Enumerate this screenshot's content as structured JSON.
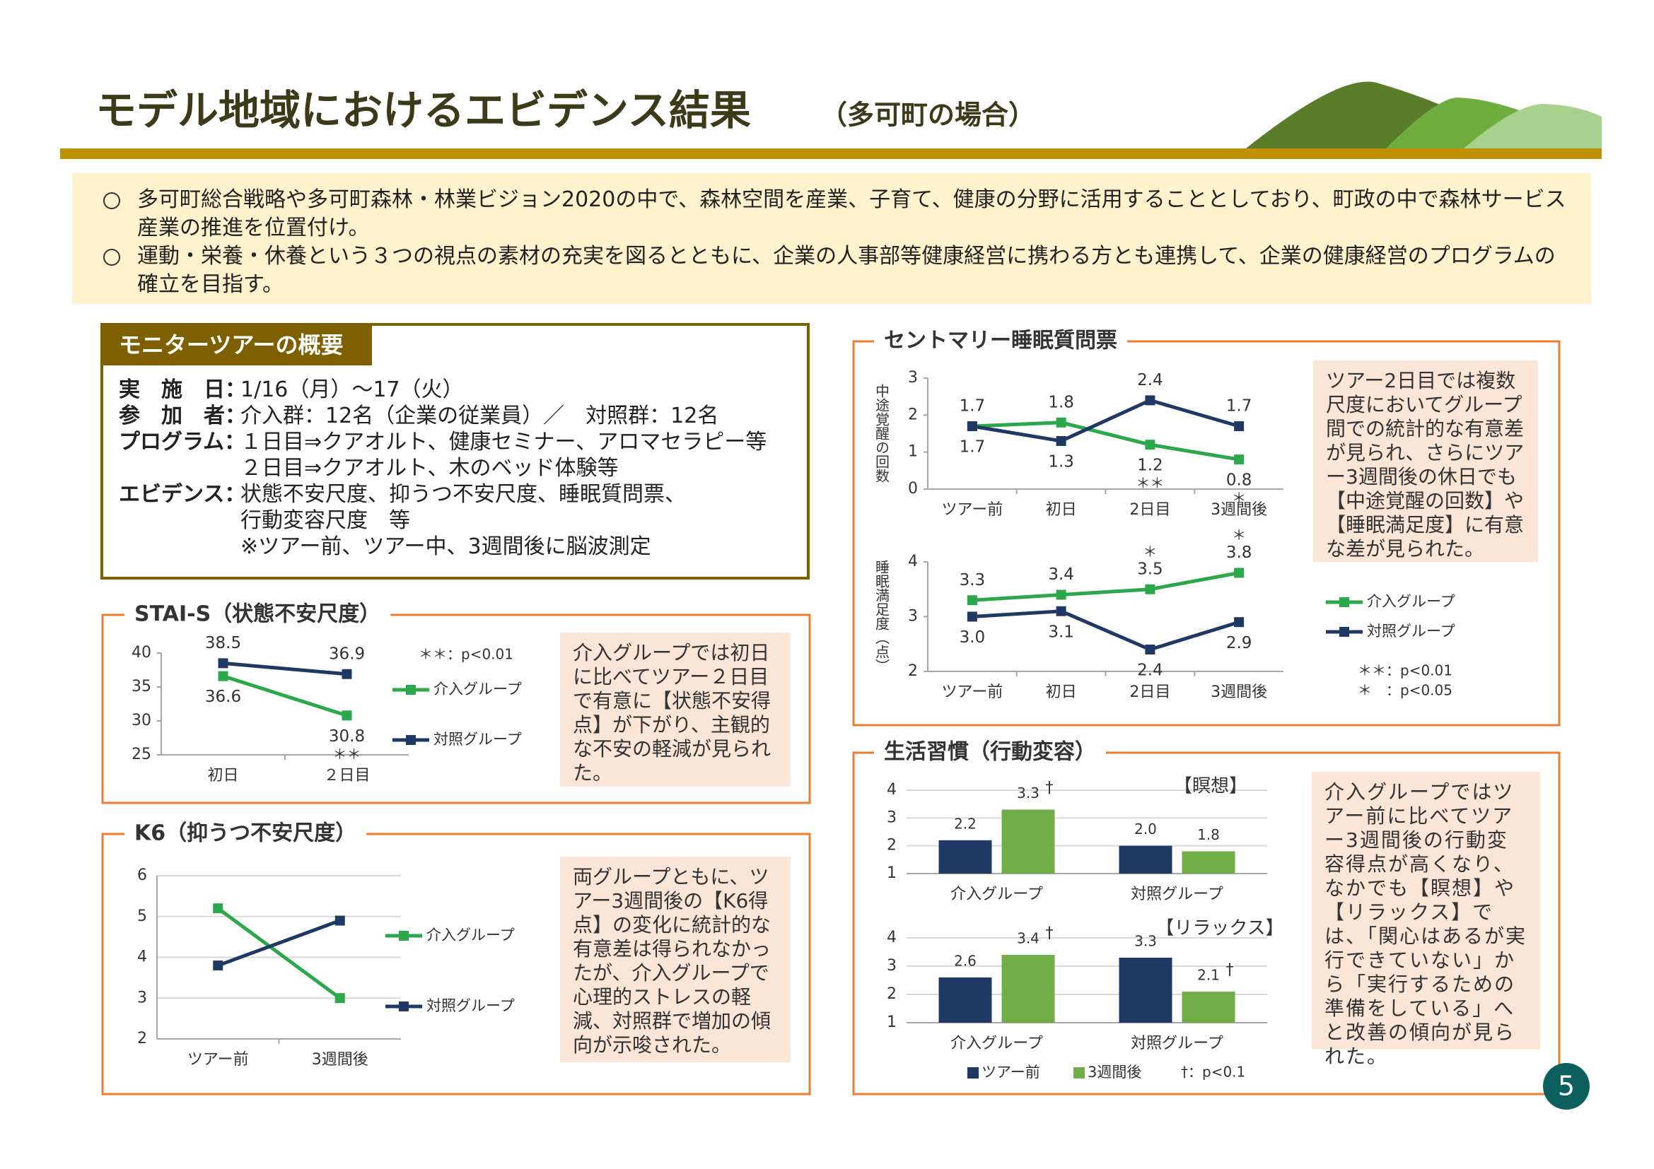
{
  "header": {
    "title": "モデル地域におけるエビデンス結果",
    "subtitle": "（多可町の場合）",
    "page": "5"
  },
  "summary": [
    "多可町総合戦略や多可町森林・林業ビジョン2020の中で、森林空間を産業、子育て、健康の分野に活用することとしており、町政の中で森林サービス産業の推進を位置付け。",
    "運動・栄養・休養という３つの視点の素材の充実を図るとともに、企業の人事部等健康経営に携わる方とも連携して、企業の健康経営のプログラムの確立を目指す。"
  ],
  "overview": {
    "title": "モニターツアーの概要",
    "rows": [
      {
        "label": "実　施　日：",
        "lines": [
          "1/16（月）～17（火）"
        ]
      },
      {
        "label": "参　加　者：",
        "lines": [
          "介入群：12名（企業の従業員）／　対照群：12名"
        ]
      },
      {
        "label": "プログラム：",
        "lines": [
          "１日目⇒クアオルト、健康セミナー、アロマセラピー等",
          "２日目⇒クアオルト、木のベッド体験等"
        ]
      },
      {
        "label": "エビデンス：",
        "lines": [
          "状態不安尺度、抑うつ不安尺度、睡眠質問票、",
          "行動変容尺度　等",
          "※ツアー前、ツアー中、3週間後に脳波測定"
        ]
      }
    ]
  },
  "panels": [
    {
      "title": "STAI-S（状態不安尺度）",
      "note": "介入グループでは初日に比べてツアー２日目で有意に【状態不安得点】が下がり、主観的な不安の軽減が見られた。"
    },
    {
      "title": "K6（抑うつ不安尺度）",
      "note": "両グループともに、ツアー3週間後の【K6得点】の変化に統計的な有意差は得られなかったが、介入グループで心理的ストレスの軽減、対照群で増加の傾向が示唆された。"
    },
    {
      "title": "セントマリー睡眠質問票",
      "note": "ツアー2日目では複数尺度においてグループ間での統計的な有意差が見られ、さらにツアー3週間後の休日でも【中途覚醒の回数】や【睡眠満足度】に有意な差が見られた。"
    },
    {
      "title": "生活習慣（行動変容）",
      "note": "介入グループではツアー前に比べてツアー3週間後の行動変容得点が高くなり、なかでも【瞑想】や【リラックス】では、「関心はあるが実行できていない」から「実行するための準備をしている」へと改善の傾向が見られた。"
    }
  ],
  "chart_data": [
    {
      "type": "line",
      "categories": [
        "初日",
        "２日目"
      ],
      "ylim": [
        25,
        40
      ],
      "yticks": [
        25,
        30,
        35,
        40
      ],
      "grid": false,
      "data_labels": true,
      "notes": [
        "＊＊：p<0.01"
      ],
      "series": [
        {
          "name": "介入グループ",
          "color": "#2aa84a",
          "values": [
            36.6,
            30.8
          ],
          "significance": [
            null,
            "＊＊"
          ]
        },
        {
          "name": "対照グループ",
          "color": "#203864",
          "values": [
            38.5,
            36.9
          ]
        }
      ]
    },
    {
      "type": "line",
      "categories": [
        "ツアー前",
        "3週間後"
      ],
      "ylim": [
        2,
        6
      ],
      "yticks": [
        2,
        3,
        4,
        5,
        6
      ],
      "grid": true,
      "data_labels": false,
      "series": [
        {
          "name": "介入グループ",
          "color": "#2aa84a",
          "values": [
            5.2,
            3.0
          ]
        },
        {
          "name": "対照グループ",
          "color": "#203864",
          "values": [
            3.8,
            4.9
          ]
        }
      ]
    },
    {
      "type": "line",
      "categories": [
        "ツアー前",
        "初日",
        "2日目",
        "3週間後"
      ],
      "ylabel": "中途覚醒の回数",
      "ylim": [
        0,
        3
      ],
      "yticks": [
        0,
        1,
        2,
        3
      ],
      "grid": false,
      "data_labels": true,
      "series": [
        {
          "color": "#2aa84a",
          "values": [
            1.7,
            1.8,
            1.2,
            0.8
          ],
          "significance": [
            null,
            null,
            "＊＊",
            "＊"
          ]
        },
        {
          "color": "#203864",
          "values": [
            1.7,
            1.3,
            2.4,
            1.7
          ]
        }
      ]
    },
    {
      "type": "line",
      "categories": [
        "ツアー前",
        "初日",
        "2日目",
        "3週間後"
      ],
      "ylabel": "睡眠満足度（点）",
      "ylim": [
        2,
        4
      ],
      "yticks": [
        2,
        3,
        4
      ],
      "grid": false,
      "data_labels": true,
      "notes": [
        "＊＊：p<0.01",
        "＊　：p<0.05"
      ],
      "series": [
        {
          "name": "介入グループ",
          "color": "#2aa84a",
          "values": [
            3.3,
            3.4,
            3.5,
            3.8
          ],
          "significance": [
            null,
            null,
            "＊",
            "＊"
          ]
        },
        {
          "name": "対照グループ",
          "color": "#203864",
          "values": [
            3.0,
            3.1,
            2.4,
            2.9
          ],
          "value_labels": [
            "3.0",
            "3.1",
            "2.4",
            "2.9"
          ]
        }
      ]
    },
    {
      "type": "bar",
      "subtitle": "【瞑想】",
      "categories": [
        "介入グループ",
        "対照グループ"
      ],
      "ylim": [
        1,
        4
      ],
      "yticks": [
        1,
        2,
        3,
        4
      ],
      "grid": true,
      "data_labels": true,
      "series": [
        {
          "color": "#203864",
          "values": [
            2.2,
            2.0
          ],
          "value_labels": [
            "2.2",
            "2.0"
          ]
        },
        {
          "color": "#70ad47",
          "values": [
            3.3,
            1.8
          ],
          "significance": [
            "†",
            null
          ]
        }
      ]
    },
    {
      "type": "bar",
      "subtitle": "【リラックス】",
      "categories": [
        "介入グループ",
        "対照グループ"
      ],
      "ylim": [
        1,
        4
      ],
      "yticks": [
        1,
        2,
        3,
        4
      ],
      "grid": true,
      "data_labels": true,
      "notes": [
        "†：p<0.1"
      ],
      "series": [
        {
          "name": "ツアー前",
          "color": "#203864",
          "values": [
            2.6,
            3.3
          ]
        },
        {
          "name": "3週間後",
          "color": "#70ad47",
          "values": [
            3.4,
            2.1
          ],
          "significance": [
            "†",
            "†"
          ]
        }
      ]
    }
  ]
}
